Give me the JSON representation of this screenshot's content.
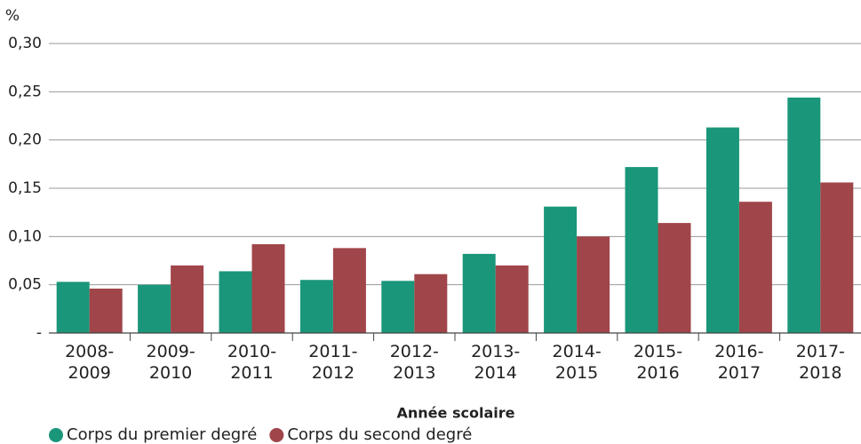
{
  "chart_data": {
    "type": "bar",
    "y_unit": "%",
    "x_label": "Année scolaire",
    "categories": [
      "2008-2009",
      "2009-2010",
      "2010-2011",
      "2011-2012",
      "2012-2013",
      "2013-2014",
      "2014-2015",
      "2015-2016",
      "2016-2017",
      "2017-2018"
    ],
    "series": [
      {
        "name": "Corps du premier degré",
        "color": "#1a967a",
        "values": [
          0.053,
          0.05,
          0.064,
          0.055,
          0.054,
          0.082,
          0.131,
          0.172,
          0.213,
          0.244
        ]
      },
      {
        "name": "Corps du second degré",
        "color": "#a0454a",
        "values": [
          0.046,
          0.07,
          0.092,
          0.088,
          0.061,
          0.07,
          0.1,
          0.114,
          0.136,
          0.156
        ]
      }
    ],
    "ylim": [
      0,
      0.3
    ],
    "yticks": [
      {
        "value": 0,
        "label": "-"
      },
      {
        "value": 0.05,
        "label": "0,05"
      },
      {
        "value": 0.1,
        "label": "0,10"
      },
      {
        "value": 0.15,
        "label": "0,15"
      },
      {
        "value": 0.2,
        "label": "0,20"
      },
      {
        "value": 0.25,
        "label": "0,25"
      },
      {
        "value": 0.3,
        "label": "0,30"
      }
    ],
    "grid": true
  }
}
